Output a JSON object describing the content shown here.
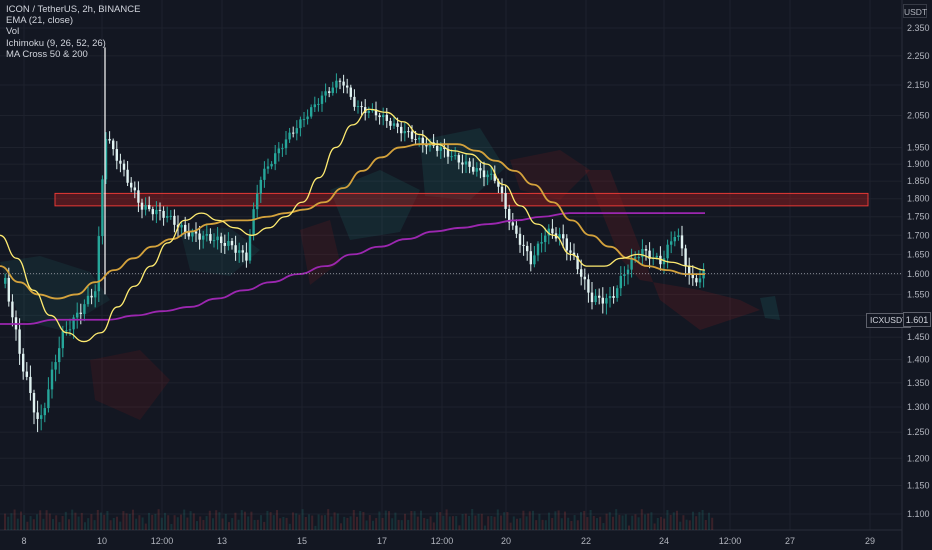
{
  "header": {
    "title": "ICON / TetherUS, 2h, BINANCE",
    "indicators": [
      "EMA (21, close)",
      "Vol",
      "Ichimoku (9, 26, 52, 26)",
      "MA Cross 50 & 200"
    ]
  },
  "price_axis": {
    "currency": "USDT",
    "ticks": [
      "2.350",
      "2.250",
      "2.150",
      "2.050",
      "1.950",
      "1.900",
      "1.850",
      "1.800",
      "1.750",
      "1.700",
      "1.650",
      "1.600",
      "1.550",
      "1.500",
      "1.450",
      "1.400",
      "1.350",
      "1.300",
      "1.250",
      "1.200",
      "1.150",
      "1.100"
    ]
  },
  "time_axis": {
    "ticks": [
      "8",
      "10",
      "12:00",
      "13",
      "15",
      "17",
      "12:00",
      "20",
      "22",
      "24",
      "12:00",
      "27",
      "29"
    ]
  },
  "last_price": {
    "symbol": "ICXUSDT",
    "value": "1.601"
  },
  "colors": {
    "background": "#131722",
    "candle_up": "#26a69a",
    "candle_down": "#e0f2f1",
    "ema21": "#ffeb70",
    "ma50": "#d4a23c",
    "ma200": "#9c27b0",
    "resistance_zone": "#b71c1c"
  },
  "chart_data": {
    "type": "candlestick",
    "symbol": "ICXUSDT",
    "exchange": "BINANCE",
    "interval": "2h",
    "y_scale": "log",
    "ylim": [
      1.08,
      2.4
    ],
    "resistance_zone": [
      1.78,
      1.815
    ],
    "last_price": 1.601,
    "series": [
      {
        "name": "EMA (21, close)",
        "values": [
          1.7,
          1.64,
          1.56,
          1.5,
          1.46,
          1.44,
          1.46,
          1.52,
          1.57,
          1.62,
          1.68,
          1.74,
          1.76,
          1.74,
          1.72,
          1.7,
          1.72,
          1.75,
          1.79,
          1.86,
          1.95,
          2.02,
          2.07,
          2.06,
          2.03,
          1.99,
          1.96,
          1.94,
          1.93,
          1.9,
          1.84,
          1.78,
          1.73,
          1.7,
          1.65,
          1.62,
          1.62,
          1.64,
          1.65,
          1.64,
          1.63,
          1.62,
          1.61
        ]
      },
      {
        "name": "MA 50",
        "values": [
          1.62,
          1.58,
          1.55,
          1.54,
          1.55,
          1.58,
          1.61,
          1.64,
          1.67,
          1.69,
          1.71,
          1.73,
          1.74,
          1.74,
          1.75,
          1.76,
          1.77,
          1.79,
          1.83,
          1.88,
          1.92,
          1.95,
          1.96,
          1.96,
          1.96,
          1.94,
          1.91,
          1.88,
          1.84,
          1.79,
          1.74,
          1.7,
          1.67,
          1.64,
          1.62,
          1.61,
          1.6,
          1.6
        ]
      },
      {
        "name": "MA 200",
        "values": [
          1.48,
          1.48,
          1.49,
          1.49,
          1.49,
          1.5,
          1.51,
          1.52,
          1.54,
          1.56,
          1.58,
          1.6,
          1.62,
          1.65,
          1.67,
          1.69,
          1.71,
          1.72,
          1.73,
          1.74,
          1.75,
          1.76,
          1.76,
          1.76,
          1.76,
          1.76,
          1.76
        ]
      }
    ]
  }
}
